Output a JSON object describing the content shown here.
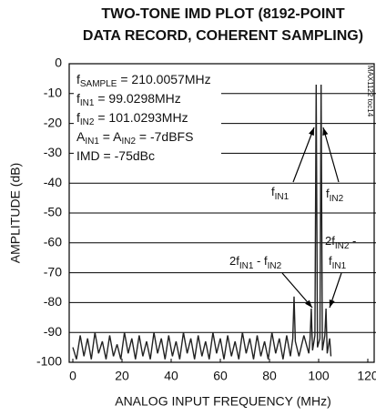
{
  "chart_data": {
    "type": "line",
    "title": [
      "TWO-TONE IMD PLOT (8192-POINT",
      "DATA RECORD, COHERENT SAMPLING)"
    ],
    "xlabel": "ANALOG INPUT FREQUENCY (MHz)",
    "ylabel": "AMPLITUDE (dB)",
    "watermark": "MAX1122 toc14",
    "xlim": [
      0,
      120
    ],
    "ylim": [
      -100,
      0
    ],
    "xticks": [
      0,
      20,
      40,
      60,
      80,
      100,
      120
    ],
    "yticks": [
      0,
      -10,
      -20,
      -30,
      -40,
      -50,
      -60,
      -70,
      -80,
      -90,
      -100
    ],
    "grid": true,
    "annotations": [
      [
        "f",
        "SAMPLE",
        " = 210.0057MHz"
      ],
      [
        "f",
        "IN1",
        " = 99.0298MHz"
      ],
      [
        "f",
        "IN2",
        " = 101.0293MHz"
      ],
      [
        "A",
        "IN1",
        " = A",
        "IN2",
        " = -7dBFS"
      ],
      [
        "IMD = -75dBc"
      ]
    ],
    "callouts": [
      [
        "f",
        "IN1"
      ],
      [
        "f",
        "IN2"
      ],
      [
        "2f",
        "IN1",
        " - f",
        "IN2"
      ],
      [
        "2f",
        "IN2",
        " -"
      ],
      [
        "f",
        "IN1"
      ]
    ],
    "series": [
      {
        "color": "#222222",
        "x": [
          0,
          1.5,
          3,
          4.5,
          6,
          7.5,
          9,
          10.5,
          12,
          13.5,
          15,
          16.5,
          18,
          19.5,
          21,
          22.5,
          24,
          25.5,
          27,
          28.5,
          30,
          31.5,
          33,
          34.5,
          36,
          37.5,
          39,
          40.5,
          42,
          43.5,
          45,
          46.5,
          48,
          49.5,
          51,
          52.5,
          54,
          55.5,
          57,
          58.5,
          60,
          61.5,
          63,
          64.5,
          66,
          67.5,
          69,
          70.5,
          72,
          73.5,
          75,
          76.5,
          78,
          79.5,
          81,
          82.5,
          84,
          85.5,
          87,
          88.5,
          89.5,
          90,
          90.5,
          92,
          94,
          96,
          96.5,
          97,
          97.5,
          98.5,
          99,
          99.5,
          100.5,
          101,
          101.5,
          102.5,
          103,
          103.5,
          104.5,
          105
        ],
        "values": [
          -95,
          -99,
          -91,
          -98,
          -92,
          -99,
          -90,
          -97,
          -93,
          -99,
          -91,
          -98,
          -94,
          -99,
          -90,
          -97,
          -92,
          -99,
          -91,
          -98,
          -93,
          -99,
          -90,
          -97,
          -92,
          -99,
          -91,
          -98,
          -93,
          -99,
          -90,
          -97,
          -92,
          -99,
          -91,
          -98,
          -93,
          -99,
          -90,
          -97,
          -92,
          -99,
          -91,
          -98,
          -93,
          -99,
          -90,
          -97,
          -92,
          -99,
          -91,
          -98,
          -93,
          -99,
          -90,
          -97,
          -92,
          -99,
          -91,
          -98,
          -92,
          -78,
          -93,
          -98,
          -91,
          -97,
          -92,
          -82,
          -96,
          -91,
          -7,
          -95,
          -92,
          -7,
          -96,
          -91,
          -82,
          -97,
          -92,
          -98
        ]
      }
    ]
  }
}
